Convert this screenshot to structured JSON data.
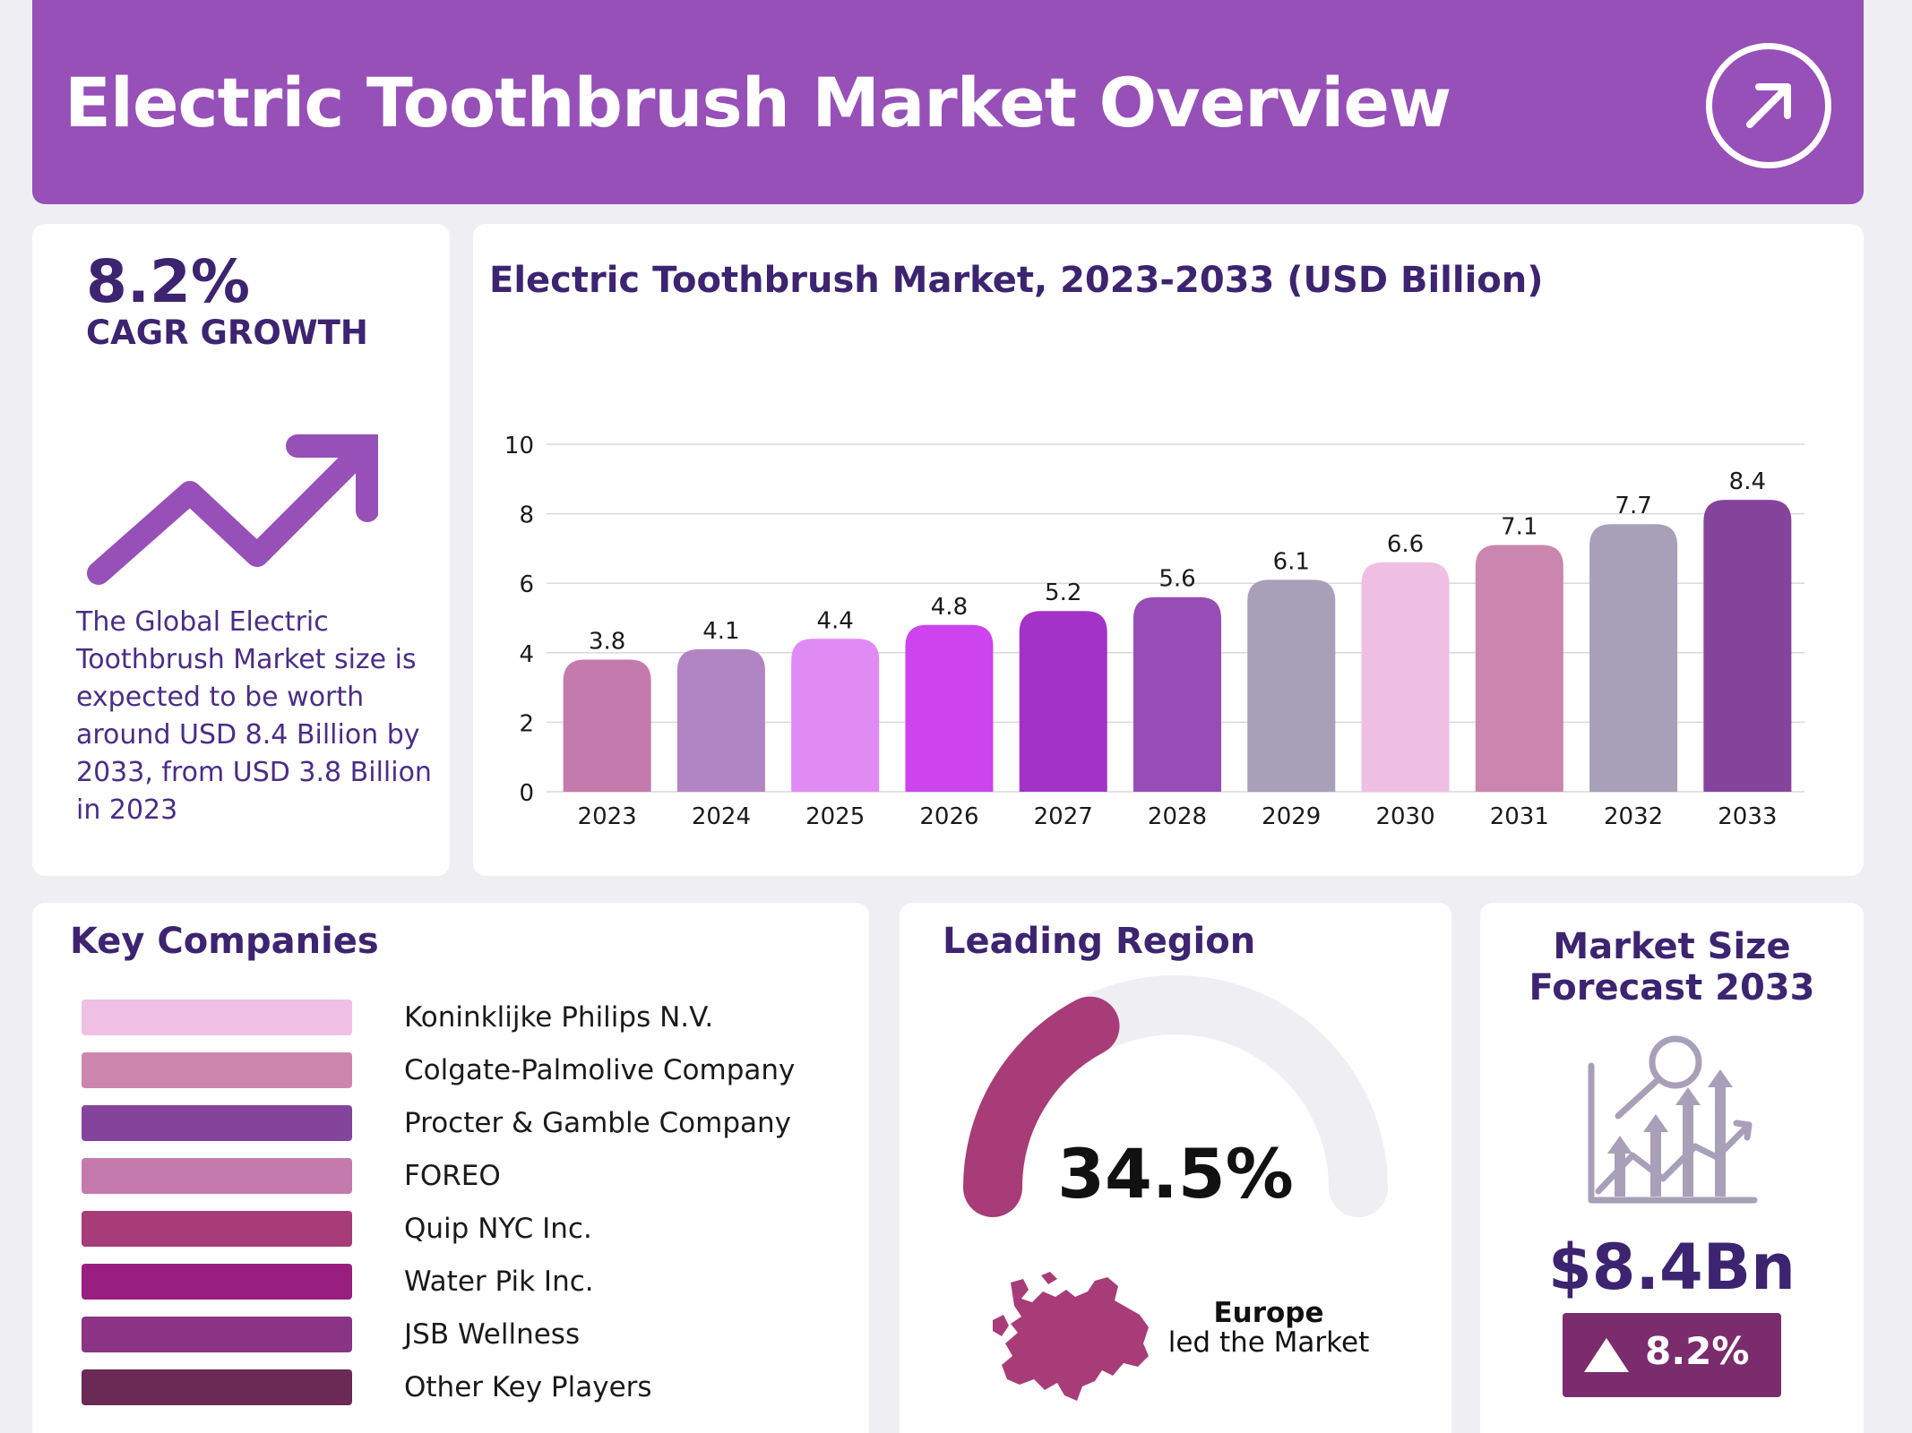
{
  "header": {
    "title": "Electric Toothbrush Market Overview",
    "icon": "arrow-up-right-icon"
  },
  "cagr": {
    "value": "8.2%",
    "label": "CAGR GROWTH",
    "icon": "trend-up-arrow-icon",
    "description": "The Global Electric Toothbrush Market size is expected to be worth around USD 8.4 Billion by 2033, from USD 3.8 Billion in 2023"
  },
  "chart_data": {
    "type": "bar",
    "title": "Electric Toothbrush Market, 2023-2033 (USD Billion)",
    "categories": [
      "2023",
      "2024",
      "2025",
      "2026",
      "2027",
      "2028",
      "2029",
      "2030",
      "2031",
      "2032",
      "2033"
    ],
    "values": [
      3.8,
      4.1,
      4.4,
      4.8,
      5.2,
      5.6,
      6.1,
      6.6,
      7.1,
      7.7,
      8.4
    ],
    "value_labels": [
      "3.8",
      "4.1",
      "4.4",
      "4.8",
      "5.2",
      "5.6",
      "6.1",
      "6.6",
      "7.1",
      "7.7",
      "8.4"
    ],
    "bar_colors": [
      "#c57aad",
      "#b185c3",
      "#e08bf4",
      "#cd44ef",
      "#a333c7",
      "#974db6",
      "#a89fb8",
      "#eebfe2",
      "#ca86af",
      "#a89fb8",
      "#85449b"
    ],
    "yticks": [
      "0",
      "2",
      "4",
      "6",
      "8",
      "10"
    ],
    "ylim": [
      0,
      10
    ],
    "xlabel": "",
    "ylabel": "",
    "grid": true,
    "legend": "none"
  },
  "companies": {
    "title": "Key Companies",
    "items": [
      {
        "name": "Koninklijke Philips N.V.",
        "color": "#efc0e4"
      },
      {
        "name": "Colgate-Palmolive Company",
        "color": "#cc86ad"
      },
      {
        "name": "Procter & Gamble Company",
        "color": "#85449b"
      },
      {
        "name": "FOREO",
        "color": "#c57aad"
      },
      {
        "name": "Quip NYC Inc.",
        "color": "#a73c78"
      },
      {
        "name": "Water Pik Inc.",
        "color": "#981f80"
      },
      {
        "name": "JSB Wellness",
        "color": "#8b3385"
      },
      {
        "name": "Other Key Players",
        "color": "#6a2a55"
      }
    ]
  },
  "region": {
    "title": "Leading Region",
    "share_percent": 34.5,
    "share_label": "34.5%",
    "gauge_color": "#a73c78",
    "track_color": "#efeef3",
    "map_icon": "europe-map-icon",
    "name": "Europe",
    "subtitle": "led the Market"
  },
  "forecast": {
    "title_line1": "Market Size",
    "title_line2": "Forecast 2033",
    "icon": "growth-analysis-icon",
    "value": "$8.4Bn",
    "badge": "8.2%",
    "badge_icon": "triangle-up-icon"
  }
}
